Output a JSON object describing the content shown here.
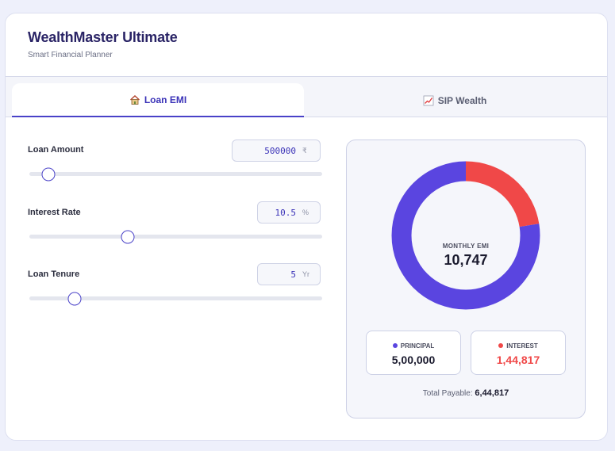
{
  "header": {
    "title": "WealthMaster Ultimate",
    "subtitle": "Smart Financial Planner"
  },
  "tabs": [
    {
      "label": "Loan EMI",
      "icon": "house-icon",
      "active": true
    },
    {
      "label": "SIP Wealth",
      "icon": "chart-increasing-icon",
      "active": false
    }
  ],
  "inputs": {
    "loan_amount": {
      "label": "Loan Amount",
      "value": "500000",
      "unit": "₹",
      "slider_fraction": 0.065
    },
    "interest_rate": {
      "label": "Interest Rate",
      "value": "10.5",
      "unit": "%",
      "slider_fraction": 0.335
    },
    "loan_tenure": {
      "label": "Loan Tenure",
      "value": "5",
      "unit": "Yr",
      "slider_fraction": 0.155
    }
  },
  "result": {
    "emi_label": "MONTHLY EMI",
    "emi_value": "10,747",
    "principal_label": "PRINCIPAL",
    "principal_value": "5,00,000",
    "interest_label": "INTEREST",
    "interest_value": "1,44,817",
    "total_label": "Total Payable:",
    "total_value": "6,44,817"
  },
  "chart_data": {
    "type": "pie",
    "categories": [
      "PRINCIPAL",
      "INTEREST"
    ],
    "values": [
      500000,
      144817
    ]
  },
  "colors": {
    "principal": "#5a45e0",
    "interest": "#f04848",
    "accent": "#3b33b8"
  }
}
